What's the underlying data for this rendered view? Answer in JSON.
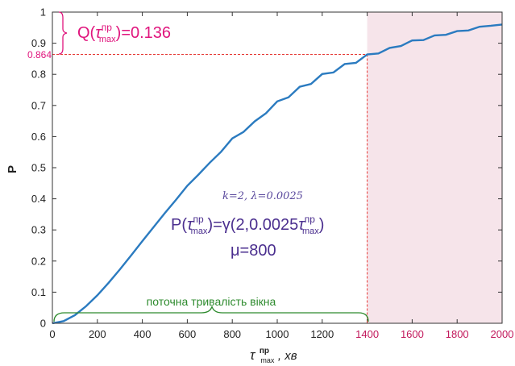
{
  "chart_data": {
    "type": "line",
    "ylabel": "P",
    "xlabel": {
      "tau": "τ",
      "sup": "пр",
      "sub": "max",
      "unit": ", хв"
    },
    "xlim": [
      0,
      2000
    ],
    "ylim": [
      0,
      1
    ],
    "xticks": [
      0,
      200,
      400,
      600,
      800,
      1000,
      1200,
      1400,
      1600,
      1800,
      2000
    ],
    "xtick_labels": [
      "0",
      "200",
      "400",
      "600",
      "800",
      "1000",
      "1200",
      "1400",
      "1600",
      "1800",
      "2000"
    ],
    "accent_xticks": [
      1400,
      1600,
      1800,
      2000
    ],
    "yticks": [
      0,
      0.1,
      0.2,
      0.3,
      0.4,
      0.5,
      0.6,
      0.7,
      0.8,
      0.9,
      1
    ],
    "ytick_labels": [
      "0",
      "0.1",
      "0.2",
      "0.3",
      "0.4",
      "0.5",
      "0.6",
      "0.7",
      "0.8",
      "0.9",
      "1"
    ],
    "series": [
      {
        "color": "#2b7bc0",
        "x": [
          0,
          50,
          100,
          150,
          200,
          250,
          300,
          350,
          400,
          450,
          500,
          550,
          600,
          650,
          700,
          750,
          800,
          850,
          900,
          950,
          1000,
          1050,
          1100,
          1150,
          1200,
          1250,
          1300,
          1350,
          1400,
          1450,
          1500,
          1550,
          1600,
          1650,
          1700,
          1750,
          1800,
          1850,
          1900,
          1950,
          2000
        ],
        "y": [
          0,
          0.007,
          0.026,
          0.055,
          0.09,
          0.13,
          0.173,
          0.218,
          0.264,
          0.309,
          0.354,
          0.397,
          0.442,
          0.478,
          0.516,
          0.551,
          0.594,
          0.615,
          0.649,
          0.675,
          0.713,
          0.726,
          0.76,
          0.769,
          0.801,
          0.806,
          0.833,
          0.837,
          0.864,
          0.867,
          0.885,
          0.891,
          0.909,
          0.91,
          0.925,
          0.927,
          0.939,
          0.941,
          0.953,
          0.956,
          0.96
        ]
      }
    ],
    "threshold": {
      "x": 1400,
      "y": 0.864,
      "y_label": "0.864"
    },
    "shaded_region": {
      "x_from": 1400,
      "x_to": 2000,
      "color": "#f6e4ea"
    },
    "annotations": {
      "q": {
        "prefix": "Q(",
        "tau": "τ",
        "sup": "пр",
        "sub": "max",
        "suffix": ")=0.136"
      },
      "params": "k=2, λ=0.0025",
      "formula": {
        "prefix": "P(",
        "tau1": "τ",
        "sup1": "пр",
        "sub1": "max",
        "mid": ")=γ(2,0.0025",
        "tau2": "τ",
        "sup2": "пр",
        "sub2": "max",
        "suffix": ")"
      },
      "mu": "μ=800",
      "window": "поточна тривалість вікна"
    },
    "colors": {
      "curve": "#2b7bc0",
      "threshold": "#e53935",
      "q": "#e0157d",
      "window": "#2e8b2e",
      "formula": "#4b2f8f",
      "accent_tick": "#c2185b"
    }
  }
}
